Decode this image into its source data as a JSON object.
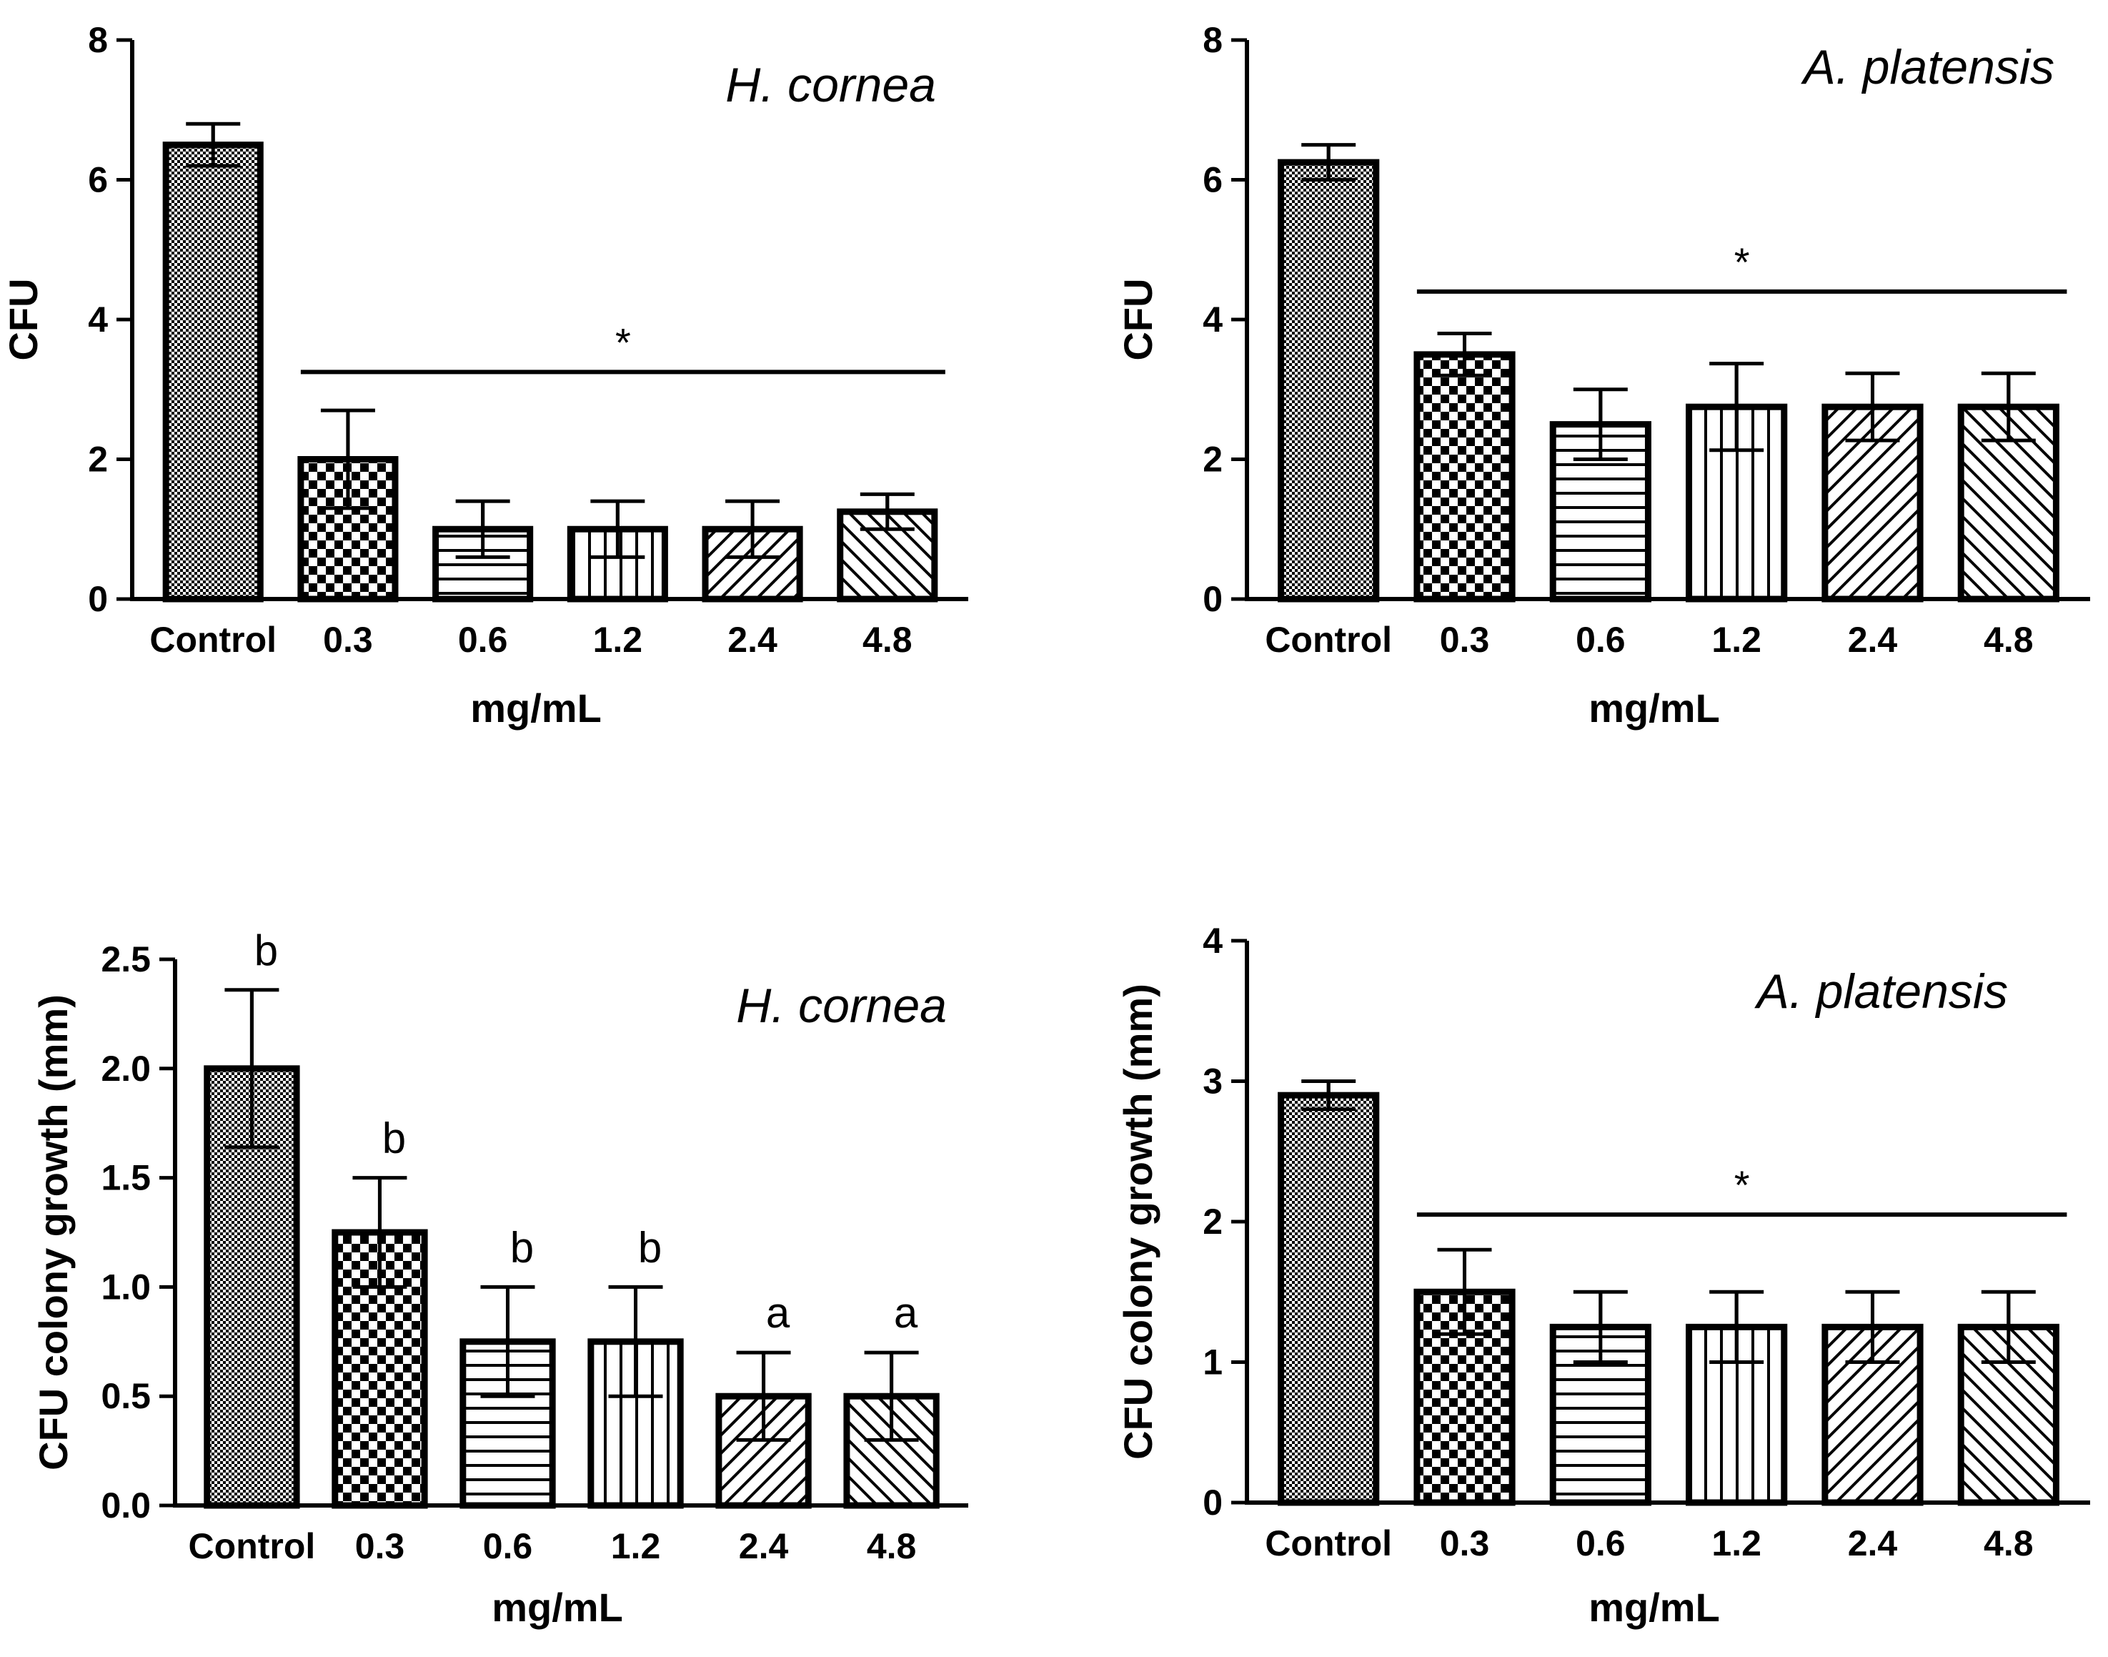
{
  "chart_data": [
    {
      "type": "bar",
      "title": "H. cornea",
      "xlabel": "mg/mL",
      "ylabel": "CFU",
      "categories": [
        "Control",
        "0.3",
        "0.6",
        "1.2",
        "2.4",
        "4.8"
      ],
      "values": [
        6.5,
        2.0,
        1.0,
        1.0,
        1.0,
        1.25
      ],
      "errors": [
        0.3,
        0.7,
        0.4,
        0.4,
        0.4,
        0.25
      ],
      "ylim": [
        0,
        8
      ],
      "yticks": [
        0,
        2,
        4,
        6,
        8
      ],
      "ytick_labels": [
        "0",
        "2",
        "4",
        "6",
        "8"
      ],
      "significance": {
        "label": "*",
        "from": "0.3",
        "to": "4.8",
        "level": 3.25
      },
      "letters": []
    },
    {
      "type": "bar",
      "title": "A. platensis",
      "xlabel": "mg/mL",
      "ylabel": "CFU",
      "categories": [
        "Control",
        "0.3",
        "0.6",
        "1.2",
        "2.4",
        "4.8"
      ],
      "values": [
        6.25,
        3.5,
        2.5,
        2.75,
        2.75,
        2.75
      ],
      "errors": [
        0.25,
        0.3,
        0.5,
        0.62,
        0.48,
        0.48
      ],
      "ylim": [
        0,
        8
      ],
      "yticks": [
        0,
        2,
        4,
        6,
        8
      ],
      "ytick_labels": [
        "0",
        "2",
        "4",
        "6",
        "8"
      ],
      "significance": {
        "label": "*",
        "from": "0.3",
        "to": "4.8",
        "level": 4.4
      },
      "letters": []
    },
    {
      "type": "bar",
      "title": "H. cornea",
      "xlabel": "mg/mL",
      "ylabel": "CFU colony growth (mm)",
      "categories": [
        "Control",
        "0.3",
        "0.6",
        "1.2",
        "2.4",
        "4.8"
      ],
      "values": [
        2.0,
        1.25,
        0.75,
        0.75,
        0.5,
        0.5
      ],
      "errors": [
        0.36,
        0.25,
        0.25,
        0.25,
        0.2,
        0.2
      ],
      "ylim": [
        0,
        2.5
      ],
      "yticks": [
        0,
        0.5,
        1.0,
        1.5,
        2.0,
        2.5
      ],
      "ytick_labels": [
        "0.0",
        "0.5",
        "1.0",
        "1.5",
        "2.0",
        "2.5"
      ],
      "significance": null,
      "letters": [
        "b",
        "b",
        "b",
        "b",
        "a",
        "a"
      ]
    },
    {
      "type": "bar",
      "title": "A. platensis",
      "xlabel": "mg/mL",
      "ylabel": "CFU colony growth (mm)",
      "categories": [
        "Control",
        "0.3",
        "0.6",
        "1.2",
        "2.4",
        "4.8"
      ],
      "values": [
        2.9,
        1.5,
        1.25,
        1.25,
        1.25,
        1.25
      ],
      "errors": [
        0.1,
        0.3,
        0.25,
        0.25,
        0.25,
        0.25
      ],
      "ylim": [
        0,
        4
      ],
      "yticks": [
        0,
        1,
        2,
        3,
        4
      ],
      "ytick_labels": [
        "0",
        "1",
        "2",
        "3",
        "4"
      ],
      "significance": {
        "label": "*",
        "from": "0.3",
        "to": "4.8",
        "level": 2.05
      },
      "letters": []
    }
  ]
}
